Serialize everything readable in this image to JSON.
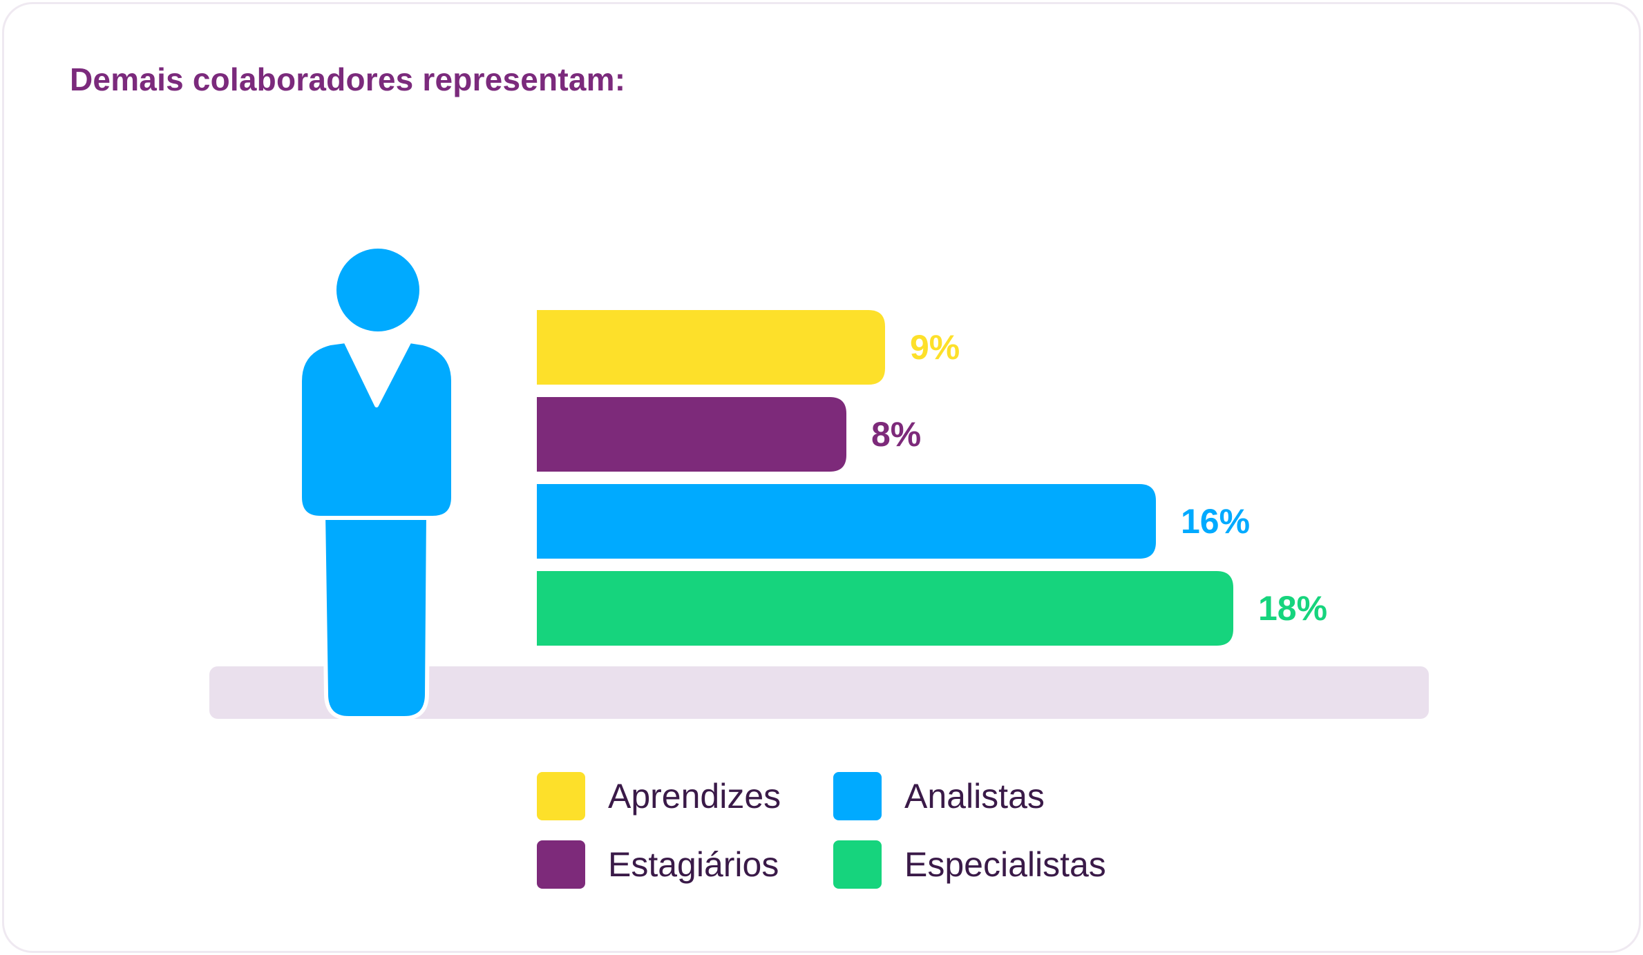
{
  "title": "Demais colaboradores representam:",
  "colors": {
    "title": "#7b2a7c",
    "floor": "#eae0ed",
    "person": "#00aaff",
    "legend_text": "#3a1a48"
  },
  "icon": "person-icon",
  "chart_data": {
    "type": "bar",
    "orientation": "horizontal",
    "categories": [
      "Aprendizes",
      "Estagiários",
      "Analistas",
      "Especialistas"
    ],
    "values": [
      9,
      8,
      16,
      18
    ],
    "value_labels": [
      "9%",
      "8%",
      "16%",
      "18%"
    ],
    "colors": [
      "#fde02a",
      "#7d2a7a",
      "#00aaff",
      "#16d47d"
    ],
    "title": "Demais colaboradores representam:",
    "grid": false,
    "legend_position": "bottom"
  }
}
